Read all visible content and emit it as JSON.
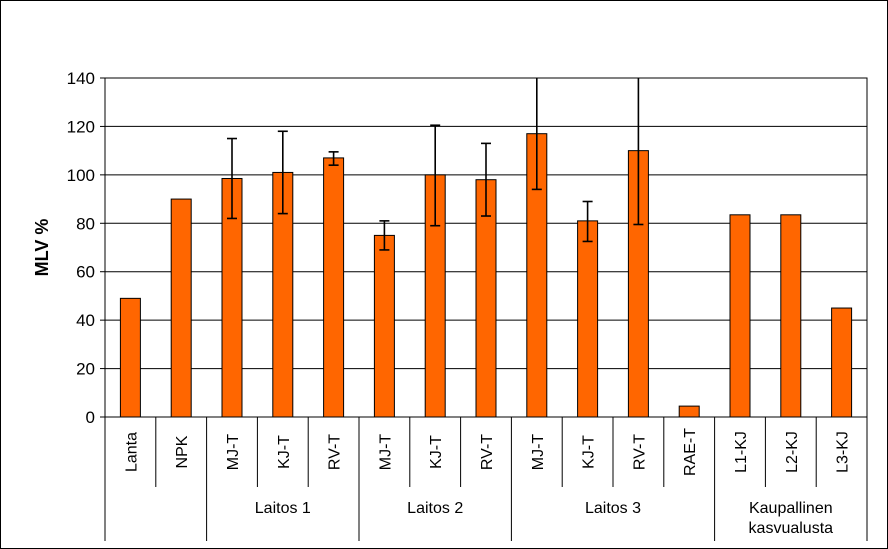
{
  "chart_data": {
    "type": "bar",
    "ylabel": "MLV %",
    "ylim": [
      0,
      140
    ],
    "yticks": [
      0,
      20,
      40,
      60,
      80,
      100,
      120,
      140
    ],
    "grid": true,
    "legend": "none",
    "bar_color": "#FF6600",
    "bar_edge_color": "#000000",
    "categories": [
      "Lanta",
      "NPK",
      "MJ-T",
      "KJ-T",
      "RV-T",
      "MJ-T",
      "KJ-T",
      "RV-T",
      "MJ-T",
      "KJ-T",
      "RV-T",
      "RAE-T",
      "L1-KJ",
      "L2-KJ",
      "L3-KJ"
    ],
    "values": [
      49,
      90,
      98.5,
      101,
      107,
      75,
      100,
      98,
      117,
      81,
      110,
      4.5,
      83.5,
      83.5,
      45
    ],
    "error_low": [
      null,
      null,
      82,
      84,
      104,
      69,
      79,
      83,
      94,
      72.5,
      79.5,
      null,
      null,
      null,
      null
    ],
    "error_high": [
      null,
      null,
      115,
      118,
      109.5,
      81,
      120.5,
      113,
      140,
      89,
      140,
      null,
      null,
      null,
      null
    ],
    "groups": [
      {
        "label": "",
        "start": 0,
        "end": 1
      },
      {
        "label": "Laitos 1",
        "start": 2,
        "end": 4
      },
      {
        "label": "Laitos 2",
        "start": 5,
        "end": 7
      },
      {
        "label": "Laitos 3",
        "start": 8,
        "end": 11
      },
      {
        "label": "Kaupallinen\nkasvualusta",
        "start": 12,
        "end": 14
      }
    ]
  }
}
